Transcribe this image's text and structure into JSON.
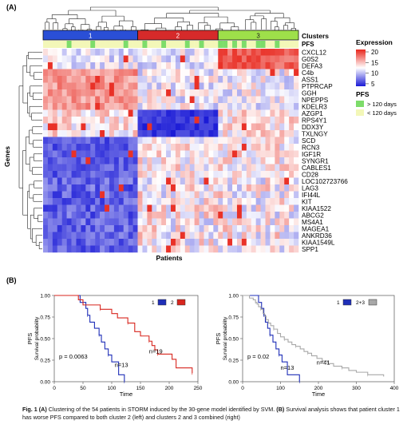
{
  "panel_a": {
    "label": "(A)",
    "clusters_title": "Clusters",
    "pfs_row_label": "PFS",
    "y_axis_label": "Genes",
    "x_axis_label": "Patients",
    "cluster_labels": [
      "1",
      "2",
      "3"
    ],
    "cluster_colors": [
      "#2a4fd6",
      "#d62a2a",
      "#9ee04a"
    ],
    "genes": [
      "CXCL12",
      "G0S2",
      "DEFA3",
      "C4b",
      "ASS1",
      "PTPRCAP",
      "GGH",
      "NPEPPS",
      "KDELR3",
      "AZGP1",
      "RPS4Y1",
      "DDX3Y",
      "TXLNGY",
      "SCD",
      "RCN3",
      "IGF1R",
      "SYNGR1",
      "CABLES1",
      "CD28",
      "LOC102723766",
      "LAG3",
      "IFI44L",
      "KIT",
      "KIAA1522",
      "ABCG2",
      "MS4A1",
      "MAGEA1",
      "ANKRD36",
      "KIAA1549L",
      "SPP1"
    ],
    "expression_legend": {
      "title": "Expression",
      "ticks": [
        "20",
        "15",
        "10",
        "5"
      ],
      "high_color": "#e8261c",
      "mid_color": "#ffffff",
      "low_color": "#1a1ad6"
    },
    "pfs_legend": {
      "title": "PFS",
      "items": [
        {
          "label": "> 120 days",
          "color": "#7ddc6a"
        },
        {
          "label": "< 120 days",
          "color": "#f3f7b8"
        }
      ]
    }
  },
  "panel_b": {
    "label": "(B)"
  },
  "chart_data": [
    {
      "type": "line",
      "subtype": "kaplan-meier",
      "xlabel": "Time",
      "ylabel": "PFS\nSurvival probability",
      "xlim": [
        0,
        250
      ],
      "ylim": [
        0,
        1
      ],
      "x_ticks": [
        0,
        50,
        100,
        150,
        200,
        250
      ],
      "y_ticks": [
        "0.00",
        "0.25",
        "0.50",
        "0.75",
        "1.00"
      ],
      "legend": {
        "items": [
          {
            "label": "1",
            "color": "#1f2fb8"
          },
          {
            "label": "2",
            "color": "#d8261e"
          }
        ],
        "placement": "top-right"
      },
      "pvalue": "p = 0.0063",
      "series": [
        {
          "name": "1",
          "color": "#1f2fb8",
          "n_label": "n=13",
          "steps": [
            [
              0,
              1.0
            ],
            [
              45,
              0.92
            ],
            [
              55,
              0.85
            ],
            [
              58,
              0.77
            ],
            [
              62,
              0.69
            ],
            [
              70,
              0.62
            ],
            [
              78,
              0.54
            ],
            [
              82,
              0.46
            ],
            [
              88,
              0.38
            ],
            [
              94,
              0.31
            ],
            [
              100,
              0.23
            ],
            [
              112,
              0.08
            ],
            [
              122,
              0.0
            ]
          ]
        },
        {
          "name": "2",
          "color": "#d8261e",
          "n_label": "n=19",
          "steps": [
            [
              0,
              1.0
            ],
            [
              42,
              0.95
            ],
            [
              50,
              0.89
            ],
            [
              80,
              0.84
            ],
            [
              100,
              0.79
            ],
            [
              110,
              0.74
            ],
            [
              128,
              0.68
            ],
            [
              140,
              0.58
            ],
            [
              150,
              0.53
            ],
            [
              165,
              0.47
            ],
            [
              170,
              0.42
            ],
            [
              175,
              0.37
            ],
            [
              180,
              0.32
            ],
            [
              205,
              0.26
            ],
            [
              212,
              0.16
            ],
            [
              240,
              0.1
            ]
          ]
        }
      ]
    },
    {
      "type": "line",
      "subtype": "kaplan-meier",
      "xlabel": "Time",
      "ylabel": "PFS\nSurvival probability",
      "xlim": [
        0,
        400
      ],
      "ylim": [
        0,
        1
      ],
      "x_ticks": [
        0,
        100,
        200,
        300,
        400
      ],
      "y_ticks": [
        "0.00",
        "0.25",
        "0.50",
        "0.75",
        "1.00"
      ],
      "legend": {
        "items": [
          {
            "label": "1",
            "color": "#1f2fb8"
          },
          {
            "label": "2+3",
            "color": "#a8a8a8"
          }
        ],
        "placement": "top-right"
      },
      "pvalue": "p = 0.02",
      "series": [
        {
          "name": "1",
          "color": "#1f2fb8",
          "n_label": "n=13",
          "steps": [
            [
              0,
              1.0
            ],
            [
              42,
              0.92
            ],
            [
              50,
              0.85
            ],
            [
              56,
              0.77
            ],
            [
              60,
              0.69
            ],
            [
              66,
              0.62
            ],
            [
              72,
              0.54
            ],
            [
              80,
              0.46
            ],
            [
              88,
              0.38
            ],
            [
              96,
              0.31
            ],
            [
              104,
              0.23
            ],
            [
              118,
              0.08
            ],
            [
              150,
              0.0
            ]
          ]
        },
        {
          "name": "2+3",
          "color": "#a8a8a8",
          "n_label": "n=41",
          "steps": [
            [
              0,
              1.0
            ],
            [
              18,
              0.97
            ],
            [
              28,
              0.95
            ],
            [
              34,
              0.92
            ],
            [
              38,
              0.9
            ],
            [
              42,
              0.87
            ],
            [
              48,
              0.84
            ],
            [
              54,
              0.79
            ],
            [
              58,
              0.76
            ],
            [
              62,
              0.72
            ],
            [
              68,
              0.68
            ],
            [
              74,
              0.65
            ],
            [
              82,
              0.61
            ],
            [
              92,
              0.56
            ],
            [
              100,
              0.52
            ],
            [
              110,
              0.49
            ],
            [
              120,
              0.46
            ],
            [
              130,
              0.43
            ],
            [
              140,
              0.41
            ],
            [
              152,
              0.38
            ],
            [
              162,
              0.35
            ],
            [
              172,
              0.33
            ],
            [
              182,
              0.3
            ],
            [
              196,
              0.27
            ],
            [
              210,
              0.24
            ],
            [
              225,
              0.21
            ],
            [
              240,
              0.18
            ],
            [
              262,
              0.16
            ],
            [
              280,
              0.13
            ],
            [
              300,
              0.11
            ],
            [
              330,
              0.08
            ],
            [
              372,
              0.06
            ]
          ]
        }
      ]
    }
  ],
  "caption": {
    "fig_label": "Fig. 1",
    "a_label": "(A)",
    "a_text": " Clustering of the 54 patients in STORM induced by the 30-gene model identified by SVM. ",
    "b_label": "(B)",
    "b_text": " Survival analysis shows that patient cluster 1 has worse PFS compared to both cluster 2 (left) and clusters 2 and 3 combined (right)"
  }
}
